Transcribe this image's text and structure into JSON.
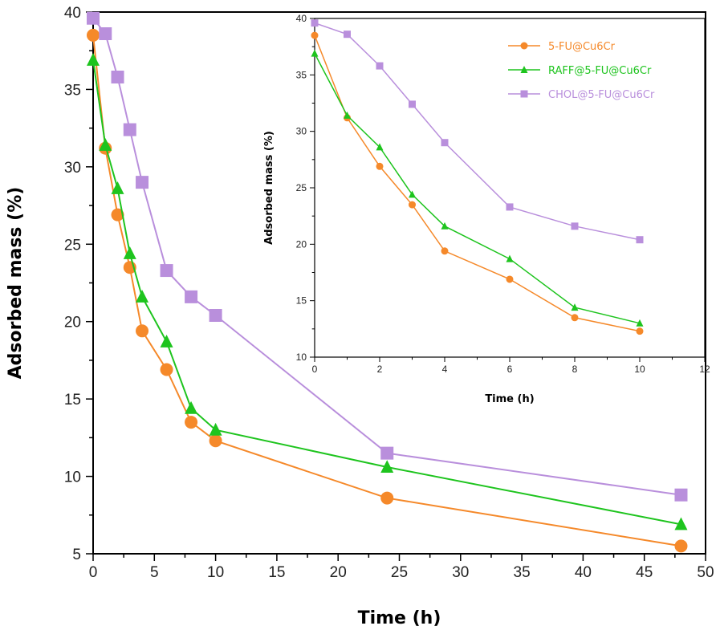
{
  "chart_data": [
    {
      "type": "line",
      "xlabel": "Time (h)",
      "ylabel": "Adsorbed mass (%)",
      "xlim": [
        0,
        50
      ],
      "ylim": [
        5,
        40
      ],
      "xticks": [
        0,
        5,
        10,
        15,
        20,
        25,
        30,
        35,
        40,
        45,
        50
      ],
      "yticks": [
        5,
        10,
        15,
        20,
        25,
        30,
        35,
        40
      ],
      "grid": false,
      "series": [
        {
          "name": "5-FU@Cu6Cr",
          "color": "#f5892a",
          "marker": "circle",
          "x": [
            0,
            1,
            2,
            3,
            4,
            6,
            8,
            10,
            24,
            48
          ],
          "values": [
            38.5,
            31.2,
            26.9,
            23.5,
            19.4,
            16.9,
            13.5,
            12.3,
            8.6,
            5.5
          ]
        },
        {
          "name": "RAFF@5-FU@Cu6Cr",
          "color": "#1ec41e",
          "marker": "triangle",
          "x": [
            0,
            1,
            2,
            3,
            4,
            6,
            8,
            10,
            24,
            48
          ],
          "values": [
            36.9,
            31.4,
            28.6,
            24.4,
            21.6,
            18.7,
            14.4,
            13.0,
            10.6,
            6.9
          ]
        },
        {
          "name": "CHOL@5-FU@Cu6Cr",
          "color": "#b98fdc",
          "marker": "square",
          "x": [
            0,
            1,
            2,
            3,
            4,
            6,
            8,
            10,
            24,
            48
          ],
          "values": [
            39.6,
            38.6,
            35.8,
            32.4,
            29.0,
            23.3,
            21.6,
            20.4,
            11.5,
            8.8
          ]
        }
      ]
    },
    {
      "type": "line",
      "xlabel": "Time (h)",
      "ylabel": "Adsorbed mass (%)",
      "xlim": [
        0,
        12
      ],
      "ylim": [
        10,
        40
      ],
      "xticks": [
        0,
        2,
        4,
        6,
        8,
        10,
        12
      ],
      "yticks": [
        10,
        15,
        20,
        25,
        30,
        35,
        40
      ],
      "grid": false,
      "legend": "top-right",
      "series": [
        {
          "name": "5-FU@Cu6Cr",
          "color": "#f5892a",
          "marker": "circle",
          "x": [
            0,
            1,
            2,
            3,
            4,
            6,
            8,
            10
          ],
          "values": [
            38.5,
            31.2,
            26.9,
            23.5,
            19.4,
            16.9,
            13.5,
            12.3
          ]
        },
        {
          "name": "RAFF@5-FU@Cu6Cr",
          "color": "#1ec41e",
          "marker": "triangle",
          "x": [
            0,
            1,
            2,
            3,
            4,
            6,
            8,
            10
          ],
          "values": [
            36.9,
            31.4,
            28.6,
            24.4,
            21.6,
            18.7,
            14.4,
            13.0
          ]
        },
        {
          "name": "CHOL@5-FU@Cu6Cr",
          "color": "#b98fdc",
          "marker": "square",
          "x": [
            0,
            1,
            2,
            3,
            4,
            6,
            8,
            10
          ],
          "values": [
            39.6,
            38.6,
            35.8,
            32.4,
            29.0,
            23.3,
            21.6,
            20.4
          ]
        }
      ]
    }
  ]
}
